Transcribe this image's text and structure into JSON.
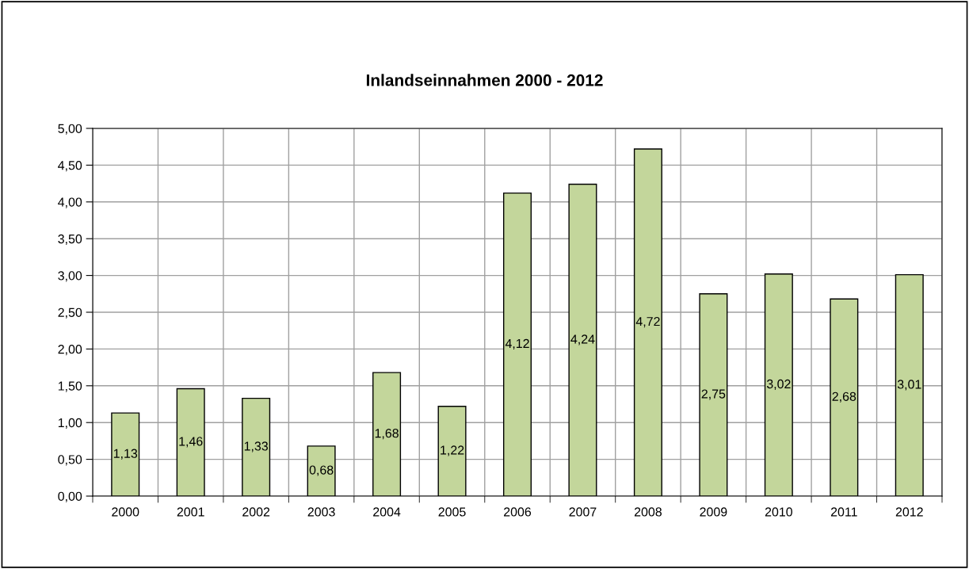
{
  "chart_data": {
    "type": "bar",
    "title": "Inlandseinnahmen 2000 - 2012",
    "categories": [
      "2000",
      "2001",
      "2002",
      "2003",
      "2004",
      "2005",
      "2006",
      "2007",
      "2008",
      "2009",
      "2010",
      "2011",
      "2012"
    ],
    "values": [
      1.13,
      1.46,
      1.33,
      0.68,
      1.68,
      1.22,
      4.12,
      4.24,
      4.72,
      2.75,
      3.02,
      2.68,
      3.01
    ],
    "value_labels": [
      "1,13",
      "1,46",
      "1,33",
      "0,68",
      "1,68",
      "1,22",
      "4,12",
      "4,24",
      "4,72",
      "2,75",
      "3,02",
      "2,68",
      "3,01"
    ],
    "color": "#c3d69b",
    "ylim": [
      0,
      5
    ],
    "yticks": [
      {
        "value": 0,
        "label": "0,00"
      },
      {
        "value": 0.5,
        "label": "0,50"
      },
      {
        "value": 1,
        "label": "1,00"
      },
      {
        "value": 1.5,
        "label": "1,50"
      },
      {
        "value": 2,
        "label": "2,00"
      },
      {
        "value": 2.5,
        "label": "2,50"
      },
      {
        "value": 3,
        "label": "3,00"
      },
      {
        "value": 3.5,
        "label": "3,50"
      },
      {
        "value": 4,
        "label": "4,00"
      },
      {
        "value": 4.5,
        "label": "4,50"
      },
      {
        "value": 5,
        "label": "5,00"
      }
    ],
    "grid": true
  }
}
